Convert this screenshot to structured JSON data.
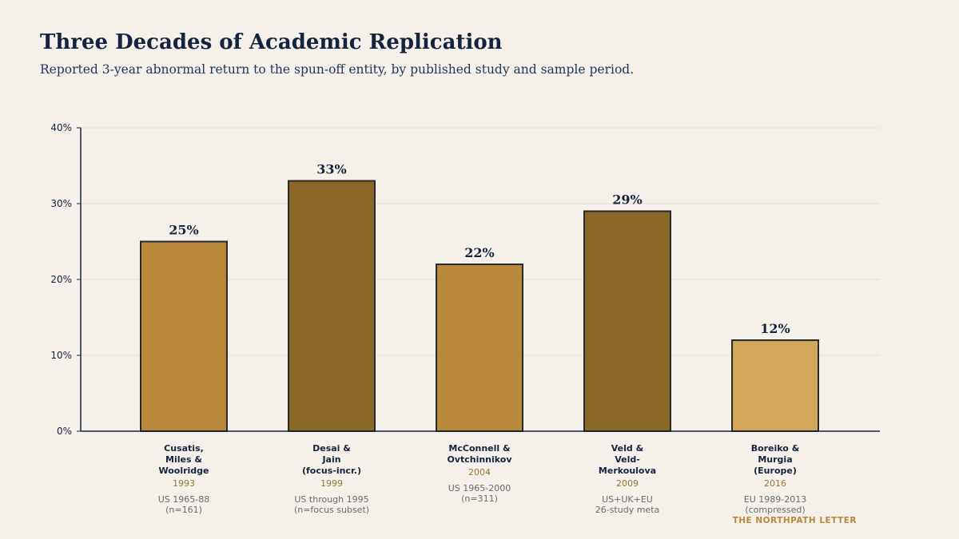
{
  "header": {
    "title": "Three Decades of Academic Replication",
    "subtitle": "Reported 3-year abnormal return to the spun-off entity, by published study and sample period."
  },
  "brand": "THE NORTHPATH LETTER",
  "chart_data": {
    "type": "bar",
    "title": "Three Decades of Academic Replication",
    "subtitle": "Reported 3-year abnormal return to the spun-off entity, by published study and sample period.",
    "ylim": [
      0,
      40
    ],
    "yticks": [
      0,
      10,
      20,
      30,
      40
    ],
    "ytick_labels": [
      "0%",
      "10%",
      "20%",
      "30%",
      "40%"
    ],
    "grid": true,
    "categories": [
      {
        "name": "Cusatis,\nMiles &\nWoolridge",
        "year": "1993",
        "sample": "US 1965-88\n(n=161)",
        "value": 25,
        "label": "25%",
        "color": "#b8893b"
      },
      {
        "name": "Desai &\nJain\n(focus-incr.)",
        "year": "1999",
        "sample": "US through 1995\n(n=focus subset)",
        "value": 33,
        "label": "33%",
        "color": "#8b6726"
      },
      {
        "name": "McConnell &\nOvtchinnikov",
        "year": "2004",
        "sample": "US 1965-2000\n(n=311)",
        "value": 22,
        "label": "22%",
        "color": "#b8893b"
      },
      {
        "name": "Veld &\nVeld-\nMerkoulova",
        "year": "2009",
        "sample": "US+UK+EU\n26-study meta",
        "value": 29,
        "label": "29%",
        "color": "#8b6726"
      },
      {
        "name": "Boreiko &\nMurgia\n(Europe)",
        "year": "2016",
        "sample": "EU 1989-2013\n(compressed)",
        "value": 12,
        "label": "12%",
        "color": "#d4a85a"
      }
    ]
  }
}
